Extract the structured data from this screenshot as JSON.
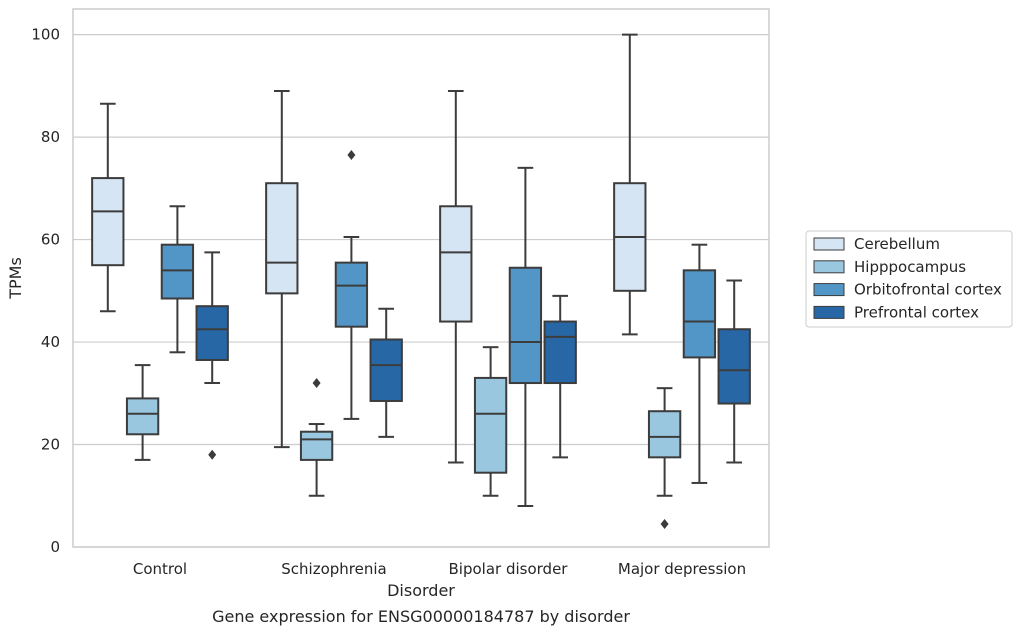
{
  "chart_data": {
    "type": "box",
    "caption": "Gene expression for ENSG00000184787 by disorder",
    "xlabel": "Disorder",
    "ylabel": "TPMs",
    "ylim": [
      0,
      105
    ],
    "yticks": [
      0,
      20,
      40,
      60,
      80,
      100
    ],
    "grid": "horizontal",
    "legend_position": "right",
    "categories": [
      "Control",
      "Schizophrenia",
      "Bipolar disorder",
      "Major depression"
    ],
    "series": [
      {
        "name": "Cerebellum",
        "color": "#d6e5f4",
        "boxes": [
          {
            "whislo": 46,
            "q1": 55,
            "med": 65.5,
            "q3": 72,
            "whishi": 86.5,
            "fliers": []
          },
          {
            "whislo": 19.5,
            "q1": 49.5,
            "med": 55.5,
            "q3": 71,
            "whishi": 89,
            "fliers": []
          },
          {
            "whislo": 16.5,
            "q1": 44,
            "med": 57.5,
            "q3": 66.5,
            "whishi": 89,
            "fliers": []
          },
          {
            "whislo": 41.5,
            "q1": 50,
            "med": 60.5,
            "q3": 71,
            "whishi": 100,
            "fliers": []
          }
        ]
      },
      {
        "name": "Hipppocampus",
        "color": "#9ac7e0",
        "boxes": [
          {
            "whislo": 17,
            "q1": 22,
            "med": 26,
            "q3": 29,
            "whishi": 35.5,
            "fliers": []
          },
          {
            "whislo": 10,
            "q1": 17,
            "med": 21,
            "q3": 22.5,
            "whishi": 24,
            "fliers": [
              32
            ]
          },
          {
            "whislo": 10,
            "q1": 14.5,
            "med": 26,
            "q3": 33,
            "whishi": 39,
            "fliers": []
          },
          {
            "whislo": 10,
            "q1": 17.5,
            "med": 21.5,
            "q3": 26.5,
            "whishi": 31,
            "fliers": [
              4.5
            ]
          }
        ]
      },
      {
        "name": "Orbitofrontal cortex",
        "color": "#5196c6",
        "boxes": [
          {
            "whislo": 38,
            "q1": 48.5,
            "med": 54,
            "q3": 59,
            "whishi": 66.5,
            "fliers": []
          },
          {
            "whislo": 25,
            "q1": 43,
            "med": 51,
            "q3": 55.5,
            "whishi": 60.5,
            "fliers": [
              76.5
            ]
          },
          {
            "whislo": 8,
            "q1": 32,
            "med": 40,
            "q3": 54.5,
            "whishi": 74,
            "fliers": []
          },
          {
            "whislo": 12.5,
            "q1": 37,
            "med": 44,
            "q3": 54,
            "whishi": 59,
            "fliers": []
          }
        ]
      },
      {
        "name": "Prefrontal cortex",
        "color": "#2767a6",
        "boxes": [
          {
            "whislo": 32,
            "q1": 36.5,
            "med": 42.5,
            "q3": 47,
            "whishi": 57.5,
            "fliers": [
              18
            ]
          },
          {
            "whislo": 21.5,
            "q1": 28.5,
            "med": 35.5,
            "q3": 40.5,
            "whishi": 46.5,
            "fliers": []
          },
          {
            "whislo": 17.5,
            "q1": 32,
            "med": 41,
            "q3": 44,
            "whishi": 49,
            "fliers": []
          },
          {
            "whislo": 16.5,
            "q1": 28,
            "med": 34.5,
            "q3": 42.5,
            "whishi": 52,
            "fliers": []
          }
        ]
      }
    ]
  }
}
